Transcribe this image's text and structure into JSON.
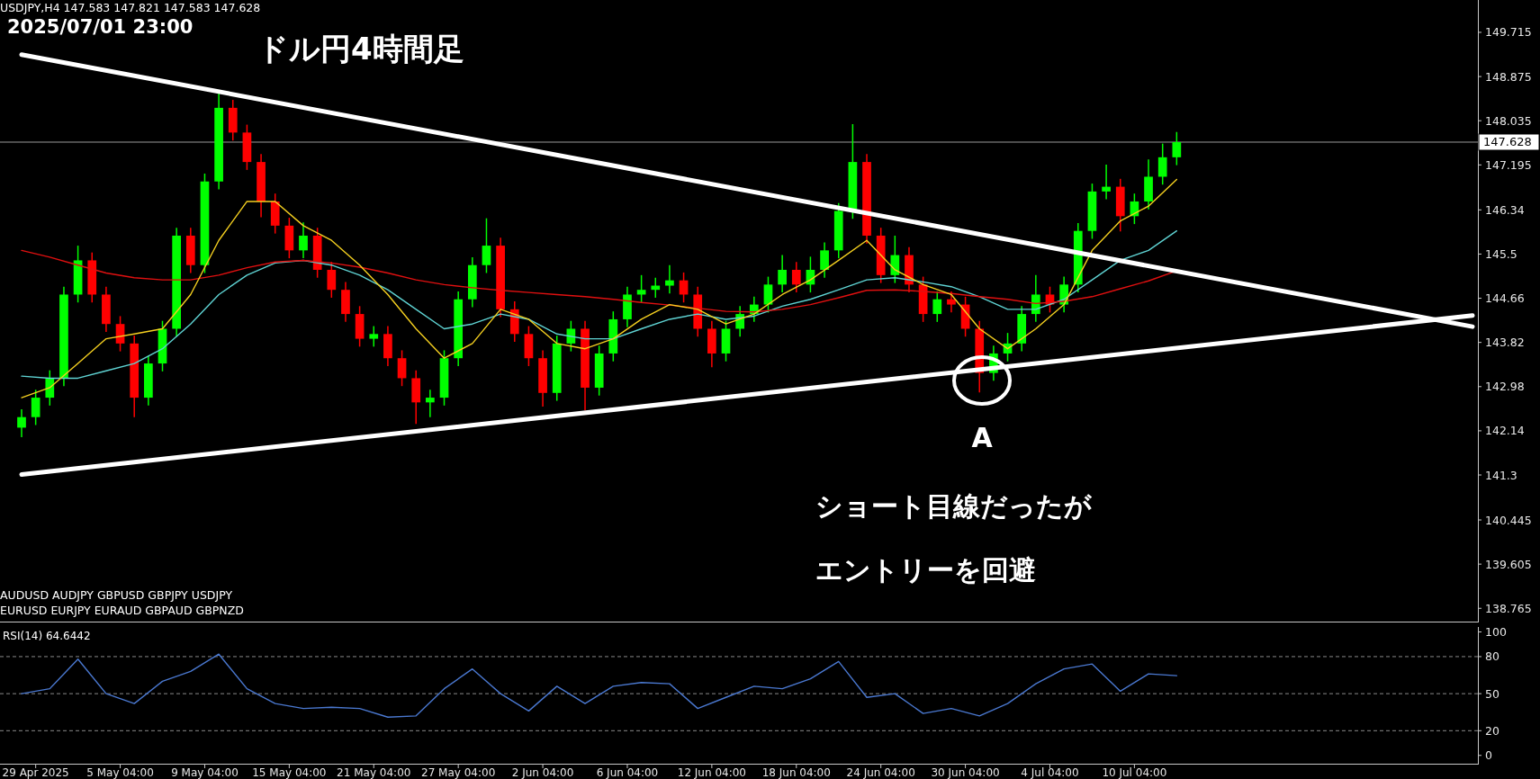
{
  "chart_data": [
    {
      "type": "candlestick",
      "title": "ドル円4時間足",
      "subtitle": "USDJPY,H4 147.583 147.821 147.583 147.628",
      "annotations": [
        "2025/07/01 23:00",
        "A",
        "ショート目線だったが",
        "エントリーを回避",
        "AUDUSD AUDJPY GBPUSD GBPJPY USDJPY",
        "EURUSD EURJPY EURAUD GBPAUD GBPNZD"
      ],
      "categories": [
        null,
        null,
        null,
        null,
        null,
        null,
        null,
        null,
        null,
        null,
        null,
        null,
        null,
        null,
        null,
        null,
        null,
        null,
        null,
        null,
        null,
        null,
        null,
        null,
        null,
        null,
        null,
        null,
        null,
        null,
        null,
        null,
        null,
        null,
        null,
        null,
        null,
        null,
        null,
        null,
        null,
        null,
        null,
        null,
        null,
        null,
        null,
        null,
        null,
        null,
        null,
        null,
        null,
        null,
        null,
        null,
        null,
        null,
        null,
        null,
        null,
        null,
        null,
        null,
        null,
        null,
        null,
        null,
        null,
        null,
        null,
        null,
        null,
        null,
        null,
        null,
        null,
        null,
        null,
        null,
        null,
        null,
        null,
        null,
        null,
        null,
        null,
        null,
        null,
        null,
        null,
        null,
        null,
        null,
        null,
        null,
        null,
        null,
        null,
        null,
        null,
        null,
        null,
        null
      ],
      "ohlc": [
        [
          142.2,
          142.55,
          142.02,
          142.4
        ],
        [
          142.4,
          142.92,
          142.25,
          142.77
        ],
        [
          142.77,
          143.29,
          142.62,
          143.14
        ],
        [
          143.14,
          144.88,
          142.99,
          144.73
        ],
        [
          144.73,
          145.66,
          144.58,
          145.38
        ],
        [
          145.38,
          145.53,
          144.58,
          144.73
        ],
        [
          144.73,
          144.88,
          144.02,
          144.17
        ],
        [
          144.17,
          144.32,
          143.65,
          143.8
        ],
        [
          143.8,
          143.95,
          142.4,
          142.77
        ],
        [
          142.77,
          143.57,
          142.62,
          143.42
        ],
        [
          143.42,
          144.23,
          143.27,
          144.08
        ],
        [
          144.08,
          146.0,
          143.93,
          145.85
        ],
        [
          145.85,
          146.0,
          145.14,
          145.29
        ],
        [
          145.29,
          147.03,
          145.14,
          146.88
        ],
        [
          146.88,
          148.56,
          146.73,
          148.28
        ],
        [
          148.28,
          148.43,
          147.66,
          147.81
        ],
        [
          147.81,
          147.96,
          147.1,
          147.25
        ],
        [
          147.25,
          147.4,
          146.2,
          146.5
        ],
        [
          146.5,
          146.65,
          145.89,
          146.04
        ],
        [
          146.04,
          146.19,
          145.42,
          145.57
        ],
        [
          145.57,
          146.1,
          145.42,
          145.85
        ],
        [
          145.85,
          146.0,
          145.05,
          145.2
        ],
        [
          145.2,
          145.35,
          144.67,
          144.82
        ],
        [
          144.82,
          144.97,
          144.21,
          144.36
        ],
        [
          144.36,
          144.51,
          143.74,
          143.89
        ],
        [
          143.89,
          144.13,
          143.74,
          143.98
        ],
        [
          143.98,
          144.13,
          143.37,
          143.52
        ],
        [
          143.52,
          143.67,
          142.99,
          143.14
        ],
        [
          143.14,
          143.29,
          142.27,
          142.68
        ],
        [
          142.68,
          142.92,
          142.4,
          142.77
        ],
        [
          142.77,
          143.67,
          142.62,
          143.52
        ],
        [
          143.52,
          144.79,
          143.37,
          144.64
        ],
        [
          144.64,
          145.44,
          144.49,
          145.29
        ],
        [
          145.29,
          146.18,
          145.14,
          145.66
        ],
        [
          145.66,
          145.81,
          144.3,
          144.45
        ],
        [
          144.45,
          144.6,
          143.83,
          143.98
        ],
        [
          143.98,
          144.13,
          143.37,
          143.52
        ],
        [
          143.52,
          143.67,
          142.6,
          142.86
        ],
        [
          142.86,
          143.95,
          142.71,
          143.8
        ],
        [
          143.8,
          144.23,
          143.65,
          144.08
        ],
        [
          144.08,
          144.23,
          142.53,
          142.96
        ],
        [
          142.96,
          143.76,
          142.81,
          143.61
        ],
        [
          143.61,
          144.41,
          143.46,
          144.26
        ],
        [
          144.26,
          144.88,
          144.11,
          144.73
        ],
        [
          144.73,
          145.1,
          144.58,
          144.82
        ],
        [
          144.82,
          145.05,
          144.67,
          144.9
        ],
        [
          144.9,
          145.29,
          144.75,
          145.0
        ],
        [
          145.0,
          145.15,
          144.58,
          144.73
        ],
        [
          144.73,
          144.88,
          143.93,
          144.08
        ],
        [
          144.08,
          144.23,
          143.35,
          143.61
        ],
        [
          143.61,
          144.23,
          143.46,
          144.08
        ],
        [
          144.08,
          144.51,
          143.93,
          144.36
        ],
        [
          144.36,
          144.69,
          144.21,
          144.54
        ],
        [
          144.54,
          145.07,
          144.39,
          144.92
        ],
        [
          144.92,
          145.48,
          144.77,
          145.2
        ],
        [
          145.2,
          145.35,
          144.77,
          144.92
        ],
        [
          144.92,
          145.45,
          144.77,
          145.2
        ],
        [
          145.2,
          145.72,
          145.05,
          145.57
        ],
        [
          145.57,
          146.47,
          145.42,
          146.32
        ],
        [
          146.32,
          147.97,
          146.17,
          147.25
        ],
        [
          147.25,
          147.4,
          145.7,
          145.85
        ],
        [
          145.85,
          146.0,
          144.95,
          145.1
        ],
        [
          145.1,
          145.85,
          144.95,
          145.48
        ],
        [
          145.48,
          145.63,
          144.77,
          144.92
        ],
        [
          144.92,
          145.07,
          144.21,
          144.36
        ],
        [
          144.36,
          144.79,
          144.21,
          144.64
        ],
        [
          144.64,
          144.79,
          144.39,
          144.54
        ],
        [
          144.54,
          144.69,
          143.93,
          144.08
        ],
        [
          144.08,
          144.23,
          142.87,
          143.24
        ],
        [
          143.24,
          143.76,
          143.09,
          143.61
        ],
        [
          143.61,
          144.0,
          143.46,
          143.8
        ],
        [
          143.8,
          144.51,
          143.65,
          144.36
        ],
        [
          144.36,
          145.1,
          144.21,
          144.73
        ],
        [
          144.73,
          144.88,
          144.39,
          144.54
        ],
        [
          144.54,
          145.07,
          144.39,
          144.92
        ],
        [
          144.92,
          146.09,
          144.77,
          145.94
        ],
        [
          145.94,
          146.84,
          145.79,
          146.69
        ],
        [
          146.69,
          147.2,
          146.54,
          146.78
        ],
        [
          146.78,
          146.93,
          145.93,
          146.22
        ],
        [
          146.22,
          146.65,
          146.07,
          146.5
        ],
        [
          146.5,
          147.3,
          146.35,
          146.97
        ],
        [
          146.97,
          147.6,
          146.82,
          147.34
        ],
        [
          147.34,
          147.821,
          147.19,
          147.628
        ],
        null,
        null,
        null,
        null,
        null,
        null,
        null,
        null,
        null,
        null,
        null,
        null,
        null,
        null,
        null,
        null,
        null,
        null,
        null,
        null,
        null
      ],
      "series": [
        {
          "type": "line",
          "color": "#5fd3d3",
          "values": [
            143.18,
            null,
            143.14,
            null,
            143.14,
            null,
            143.28,
            null,
            143.42,
            null,
            143.7,
            null,
            144.17,
            null,
            144.73,
            null,
            145.1,
            null,
            145.33,
            null,
            145.38,
            null,
            145.29,
            null,
            145.1,
            null,
            144.82,
            null,
            144.45,
            null,
            144.08,
            null,
            144.17,
            null,
            144.36,
            null,
            144.26,
            null,
            143.98,
            null,
            143.89,
            null,
            143.89,
            null,
            144.08,
            null,
            144.26,
            null,
            144.36,
            null,
            144.26,
            null,
            144.32,
            null,
            144.51,
            null,
            144.64,
            null,
            144.82,
            null,
            145.01,
            null,
            145.05,
            null,
            144.97,
            null,
            144.88,
            null,
            144.69,
            null,
            144.45,
            null,
            144.45,
            null,
            144.64,
            null,
            145.01,
            null,
            145.38,
            null,
            145.57,
            null,
            145.94,
            null,
            null,
            null,
            null,
            null,
            null,
            null,
            null,
            null,
            null,
            null,
            null,
            null,
            null,
            null,
            null,
            null,
            null,
            null,
            null,
            null
          ]
        },
        {
          "type": "line",
          "color": "#e01010",
          "values": [
            145.57,
            null,
            145.44,
            null,
            145.29,
            null,
            145.14,
            null,
            145.05,
            null,
            145.01,
            null,
            145.01,
            null,
            145.1,
            null,
            145.24,
            null,
            145.35,
            null,
            145.38,
            null,
            145.33,
            null,
            145.25,
            null,
            145.14,
            null,
            145.01,
            null,
            144.92,
            null,
            144.86,
            null,
            144.81,
            null,
            144.77,
            null,
            144.73,
            null,
            144.69,
            null,
            144.64,
            null,
            144.58,
            null,
            144.53,
            null,
            144.47,
            null,
            144.41,
            null,
            144.4,
            null,
            144.45,
            null,
            144.54,
            null,
            144.67,
            null,
            144.81,
            null,
            144.82,
            null,
            144.79,
            null,
            144.75,
            null,
            144.69,
            null,
            144.64,
            null,
            144.56,
            null,
            144.6,
            null,
            144.69,
            null,
            144.84,
            null,
            144.99,
            null,
            145.18,
            null,
            null,
            null,
            null,
            null,
            null,
            null,
            null,
            null,
            null,
            null,
            null,
            null,
            null,
            null,
            null,
            null,
            null,
            null,
            null,
            null
          ]
        },
        {
          "type": "line",
          "color": "#f5d020",
          "values": [
            142.77,
            null,
            142.96,
            null,
            143.42,
            null,
            143.89,
            null,
            143.98,
            null,
            144.08,
            null,
            144.73,
            null,
            145.76,
            null,
            146.5,
            null,
            146.5,
            null,
            146.04,
            null,
            145.76,
            null,
            145.29,
            null,
            144.73,
            null,
            144.08,
            null,
            143.52,
            null,
            143.8,
            null,
            144.45,
            null,
            144.26,
            null,
            143.8,
            null,
            143.7,
            null,
            143.89,
            null,
            144.26,
            null,
            144.54,
            null,
            144.45,
            null,
            144.17,
            null,
            144.36,
            null,
            144.73,
            null,
            145.01,
            null,
            145.38,
            null,
            145.76,
            null,
            145.2,
            null,
            144.92,
            null,
            144.73,
            null,
            144.08,
            null,
            143.7,
            null,
            144.08,
            null,
            144.54,
            null,
            145.57,
            null,
            146.13,
            null,
            146.41,
            null,
            146.92,
            null,
            null,
            null,
            null,
            null,
            null,
            null,
            null,
            null,
            null,
            null,
            null,
            null,
            null,
            null,
            null,
            null,
            null,
            null,
            null,
            null
          ]
        },
        {
          "type": "line",
          "color": "#ffffff",
          "values": [
            149.29,
            null,
            null,
            null,
            null,
            null,
            null,
            null,
            null,
            null,
            null,
            null,
            null,
            null,
            null,
            null,
            null,
            null,
            null,
            null,
            null,
            null,
            null,
            null,
            null,
            null,
            null,
            null,
            null,
            null,
            null,
            null,
            null,
            null,
            null,
            null,
            null,
            null,
            null,
            null,
            null,
            null,
            null,
            null,
            null,
            null,
            null,
            null,
            null,
            null,
            null,
            null,
            null,
            null,
            null,
            null,
            null,
            null,
            null,
            null,
            null,
            null,
            null,
            null,
            null,
            null,
            null,
            null,
            null,
            null,
            null,
            null,
            null,
            null,
            null,
            null,
            null,
            null,
            null,
            null,
            null,
            null,
            null,
            null,
            null,
            null,
            null,
            null,
            null,
            null,
            null,
            null,
            null,
            null,
            null,
            null,
            null,
            null,
            null,
            null,
            null,
            null,
            null,
            144.12
          ]
        },
        {
          "type": "line",
          "color": "#ffffff",
          "values": [
            141.31,
            null,
            null,
            null,
            null,
            null,
            null,
            null,
            null,
            null,
            null,
            null,
            null,
            null,
            null,
            null,
            null,
            null,
            null,
            null,
            null,
            null,
            null,
            null,
            null,
            null,
            null,
            null,
            null,
            null,
            null,
            null,
            null,
            null,
            null,
            null,
            null,
            null,
            null,
            null,
            null,
            null,
            null,
            null,
            null,
            null,
            null,
            null,
            null,
            null,
            null,
            null,
            null,
            null,
            null,
            null,
            null,
            null,
            null,
            null,
            null,
            null,
            null,
            null,
            null,
            null,
            null,
            null,
            null,
            null,
            null,
            null,
            null,
            null,
            null,
            null,
            null,
            null,
            null,
            null,
            null,
            null,
            null,
            null,
            null,
            null,
            null,
            null,
            null,
            null,
            null,
            null,
            null,
            null,
            null,
            null,
            null,
            null,
            null,
            null,
            null,
            null,
            null,
            144.33
          ]
        }
      ],
      "ylim": [
        138.53,
        150.33
      ],
      "yticks": [
        138.765,
        139.605,
        140.445,
        141.3,
        142.14,
        142.98,
        143.82,
        144.66,
        145.5,
        146.34,
        147.195,
        148.035,
        148.875,
        149.715
      ],
      "ref_lines": [
        {
          "axis": "y",
          "value": 147.628,
          "label": "147.628",
          "color": "#9a9a9a"
        }
      ]
    },
    {
      "type": "line",
      "title": "RSI(14) 64.6442",
      "categories": [
        null,
        "29 Apr 2025",
        null,
        null,
        null,
        null,
        null,
        "5 May 04:00",
        null,
        null,
        null,
        null,
        null,
        "9 May 04:00",
        null,
        null,
        null,
        null,
        null,
        "15 May 04:00",
        null,
        null,
        null,
        null,
        null,
        "21 May 04:00",
        null,
        null,
        null,
        null,
        null,
        "27 May 04:00",
        null,
        null,
        null,
        null,
        null,
        "2 Jun 04:00",
        null,
        null,
        null,
        null,
        null,
        "6 Jun 04:00",
        null,
        null,
        null,
        null,
        null,
        "12 Jun 04:00",
        null,
        null,
        null,
        null,
        null,
        "18 Jun 04:00",
        null,
        null,
        null,
        null,
        null,
        "24 Jun 04:00",
        null,
        null,
        null,
        null,
        null,
        "30 Jun 04:00",
        null,
        null,
        null,
        null,
        null,
        "4 Jul 04:00",
        null,
        null,
        null,
        null,
        null,
        "10 Jul 04:00",
        null,
        null,
        null,
        null,
        null,
        null,
        null,
        null,
        null,
        null,
        null,
        null,
        null,
        null,
        null,
        null,
        null,
        null,
        null,
        null,
        null,
        null,
        null,
        null
      ],
      "series": [
        {
          "color": "#4a78d0",
          "values": [
            50,
            null,
            54,
            null,
            78,
            null,
            50,
            null,
            42,
            null,
            60,
            null,
            68,
            null,
            82,
            null,
            54,
            null,
            42,
            null,
            38,
            null,
            39,
            null,
            38,
            null,
            31,
            null,
            32,
            null,
            54,
            null,
            70,
            null,
            50,
            null,
            36,
            null,
            56,
            null,
            42,
            null,
            56,
            null,
            59,
            null,
            58,
            null,
            38,
            null,
            47,
            null,
            56,
            null,
            54,
            null,
            62,
            null,
            76,
            null,
            47,
            null,
            50,
            null,
            34,
            null,
            38,
            null,
            32,
            null,
            42,
            null,
            58,
            null,
            70,
            null,
            74,
            null,
            52,
            null,
            66,
            null,
            64.6,
            null,
            null,
            null,
            null,
            null,
            null,
            null,
            null,
            null,
            null,
            null,
            null,
            null,
            null,
            null,
            null,
            null,
            null,
            null,
            null,
            null
          ]
        }
      ],
      "ylim": [
        -6,
        104
      ],
      "yticks": [
        0,
        20,
        50,
        80,
        100
      ],
      "ref_lines": [
        {
          "axis": "y",
          "value": 80,
          "color": "#8a8a8a",
          "line_style": "dashed"
        },
        {
          "axis": "y",
          "value": 50,
          "color": "#8a8a8a",
          "line_style": "dashed"
        },
        {
          "axis": "y",
          "value": 20,
          "color": "#8a8a8a",
          "line_style": "dashed"
        }
      ]
    }
  ]
}
